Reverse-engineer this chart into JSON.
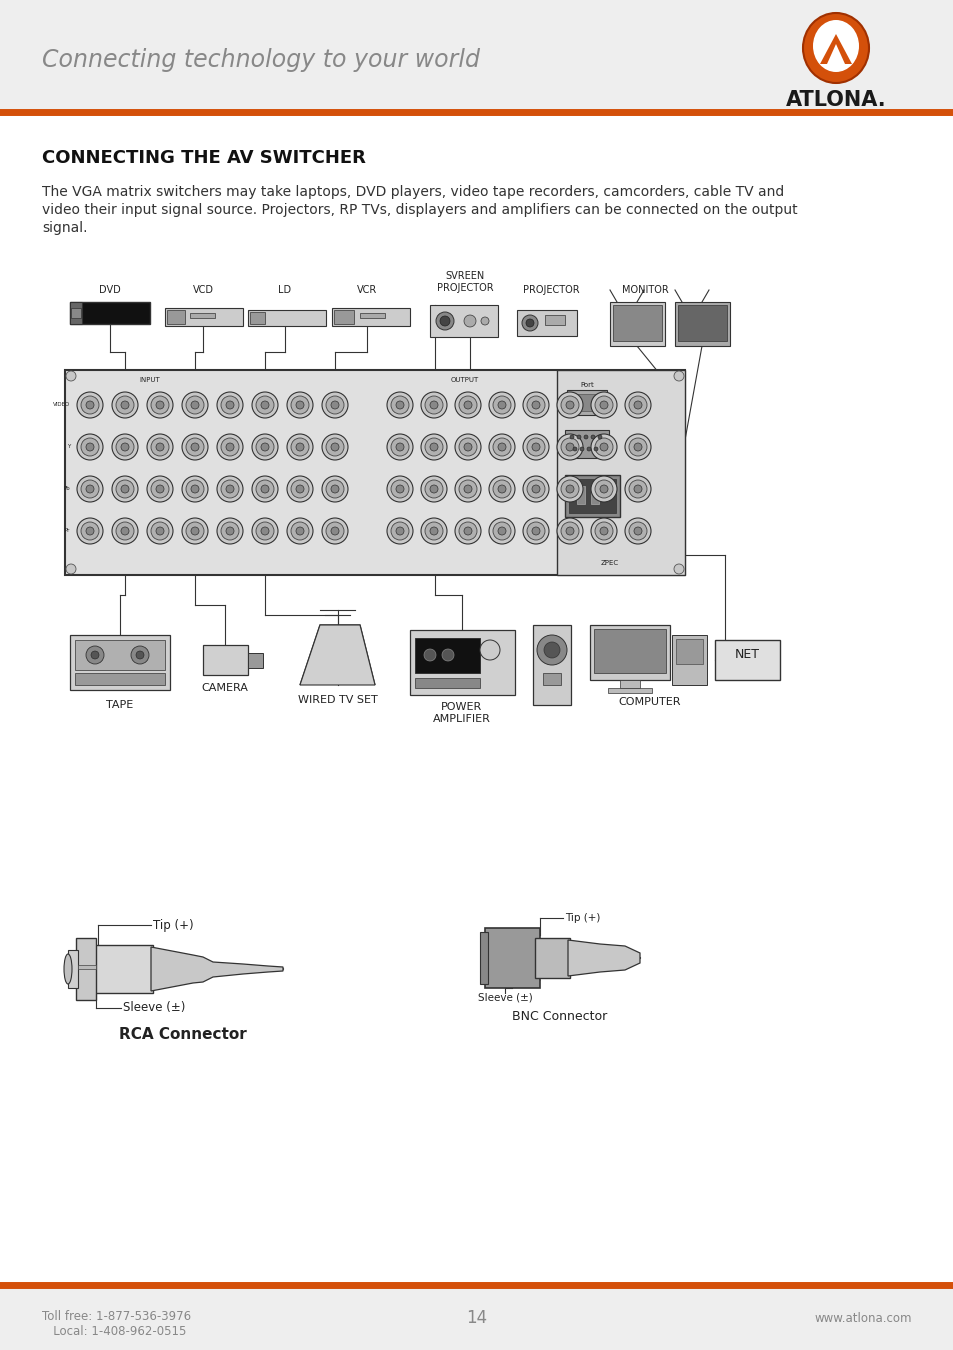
{
  "header_bg": "#eeeeee",
  "header_text": "Connecting technology to your world",
  "header_text_color": "#888888",
  "logo_text": "ATLONA.",
  "orange_color": "#d4500a",
  "page_bg": "#ffffff",
  "footer_bg": "#eeeeee",
  "title": "CONNECTING THE AV SWITCHER",
  "title_color": "#111111",
  "body_line1": "The VGA matrix switchers may take laptops, DVD players, video tape recorders, camcorders, cable TV and",
  "body_line2": "video their input signal source. Projectors, RP TVs, displayers and amplifiers can be connected on the output",
  "body_line3": "signal.",
  "footer_left1": "Toll free: 1-877-536-3976",
  "footer_left2": "   Local: 1-408-962-0515",
  "footer_center": "14",
  "footer_right": "www.atlona.com",
  "footer_text_color": "#888888",
  "diagram_line_color": "#333333",
  "diagram_fill": "#e8e8e8",
  "rack_fill": "#d4d4d4",
  "connector_fill": "#b8b8b8"
}
